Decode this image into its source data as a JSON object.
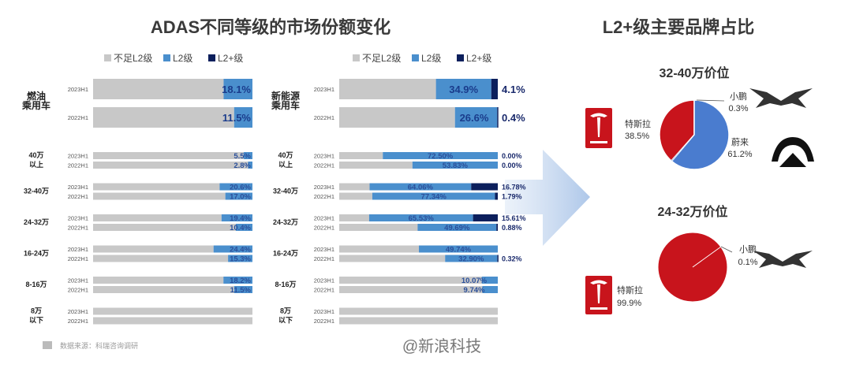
{
  "left_title": "ADAS不同等级的市场份额变化",
  "right_title": "L2+级主要品牌占比",
  "legend": [
    {
      "label": "不足L2级",
      "color": "#c8c8c8"
    },
    {
      "label": "L2级",
      "color": "#4a8fcd"
    },
    {
      "label": "L2+级",
      "color": "#0c1f5c"
    }
  ],
  "source_note": "数据来源：科瑞咨询调研",
  "watermark": "@新浪科技",
  "chart_data": [
    {
      "type": "bar",
      "stacked": true,
      "orientation": "horizontal",
      "title": "ADAS不同等级的市场份额变化 — 燃油乘用车",
      "series_names": [
        "不足L2级",
        "L2级",
        "L2+级"
      ],
      "groups": [
        {
          "label": "燃油\n乘用车",
          "rows": [
            {
              "year": "2023H1",
              "l2": 18.1,
              "l2p": 0,
              "label": "18.1%"
            },
            {
              "year": "2022H1",
              "l2": 11.5,
              "l2p": 0,
              "label": "11.5%"
            }
          ]
        },
        {
          "label": "40万\n以上",
          "rows": [
            {
              "year": "2023H1",
              "l2": 5.5,
              "l2p": 0,
              "label": "5.5%"
            },
            {
              "year": "2022H1",
              "l2": 2.8,
              "l2p": 0,
              "label": "2.8%"
            }
          ]
        },
        {
          "label": "32-40万",
          "rows": [
            {
              "year": "2023H1",
              "l2": 20.6,
              "l2p": 0,
              "label": "20.6%"
            },
            {
              "year": "2022H1",
              "l2": 17.0,
              "l2p": 0,
              "label": "17.0%"
            }
          ]
        },
        {
          "label": "24-32万",
          "rows": [
            {
              "year": "2023H1",
              "l2": 19.4,
              "l2p": 0,
              "label": "19.4%"
            },
            {
              "year": "2022H1",
              "l2": 10.4,
              "l2p": 0,
              "label": "10.4%"
            }
          ]
        },
        {
          "label": "16-24万",
          "rows": [
            {
              "year": "2023H1",
              "l2": 24.4,
              "l2p": 0,
              "label": "24.4%"
            },
            {
              "year": "2022H1",
              "l2": 15.3,
              "l2p": 0,
              "label": "15.3%"
            }
          ]
        },
        {
          "label": "8-16万",
          "rows": [
            {
              "year": "2023H1",
              "l2": 18.2,
              "l2p": 0,
              "label": "18.2%"
            },
            {
              "year": "2022H1",
              "l2": 11.5,
              "l2p": 0,
              "label": "11.5%"
            }
          ]
        },
        {
          "label": "8万\n以下",
          "rows": [
            {
              "year": "2023H1",
              "l2": 0,
              "l2p": 0,
              "label": ""
            },
            {
              "year": "2022H1",
              "l2": 0,
              "l2p": 0,
              "label": ""
            }
          ]
        }
      ]
    },
    {
      "type": "bar",
      "stacked": true,
      "orientation": "horizontal",
      "title": "ADAS不同等级的市场份额变化 — 新能源乘用车",
      "series_names": [
        "不足L2级",
        "L2级",
        "L2+级"
      ],
      "groups": [
        {
          "label": "新能源\n乘用车",
          "rows": [
            {
              "year": "2023H1",
              "l2": 34.9,
              "l2p": 4.1,
              "label": "34.9%",
              "label2": "4.1%"
            },
            {
              "year": "2022H1",
              "l2": 26.6,
              "l2p": 0.4,
              "label": "26.6%",
              "label2": "0.4%"
            }
          ]
        },
        {
          "label": "40万\n以上",
          "rows": [
            {
              "year": "2023H1",
              "l2": 72.5,
              "l2p": 0,
              "label": "72.50%",
              "label2": "0.00%"
            },
            {
              "year": "2022H1",
              "l2": 53.83,
              "l2p": 0,
              "label": "53.83%",
              "label2": "0.00%"
            }
          ]
        },
        {
          "label": "32-40万",
          "rows": [
            {
              "year": "2023H1",
              "l2": 64.06,
              "l2p": 16.78,
              "label": "64.06%",
              "label2": "16.78%"
            },
            {
              "year": "2022H1",
              "l2": 77.34,
              "l2p": 1.79,
              "label": "77.34%",
              "label2": "1.79%"
            }
          ]
        },
        {
          "label": "24-32万",
          "rows": [
            {
              "year": "2023H1",
              "l2": 65.53,
              "l2p": 15.61,
              "label": "65.53%",
              "label2": "15.61%"
            },
            {
              "year": "2022H1",
              "l2": 49.69,
              "l2p": 0.88,
              "label": "49.69%",
              "label2": "0.88%"
            }
          ]
        },
        {
          "label": "16-24万",
          "rows": [
            {
              "year": "2023H1",
              "l2": 49.74,
              "l2p": 0,
              "label": "49.74%",
              "label2": ""
            },
            {
              "year": "2022H1",
              "l2": 32.9,
              "l2p": 0.32,
              "label": "32.90%",
              "label2": "0.32%"
            }
          ]
        },
        {
          "label": "8-16万",
          "rows": [
            {
              "year": "2023H1",
              "l2": 10.07,
              "l2p": 0,
              "label": "10.07%",
              "label2": ""
            },
            {
              "year": "2022H1",
              "l2": 9.74,
              "l2p": 0,
              "label": "9.74%",
              "label2": ""
            }
          ]
        },
        {
          "label": "8万\n以下",
          "rows": [
            {
              "year": "2023H1",
              "l2": 0,
              "l2p": 0,
              "label": "",
              "label2": ""
            },
            {
              "year": "2022H1",
              "l2": 0,
              "l2p": 0,
              "label": "",
              "label2": ""
            }
          ]
        }
      ]
    },
    {
      "type": "pie",
      "title": "32-40万价位",
      "slices": [
        {
          "name": "特斯拉",
          "value": 38.5,
          "label": "38.5%",
          "color": "#c8141c"
        },
        {
          "name": "蔚来",
          "value": 61.2,
          "label": "61.2%",
          "color": "#4a7ccf"
        },
        {
          "name": "小鹏",
          "value": 0.3,
          "label": "0.3%",
          "color": "#4a7ccf"
        }
      ]
    },
    {
      "type": "pie",
      "title": "24-32万价位",
      "slices": [
        {
          "name": "特斯拉",
          "value": 99.9,
          "label": "99.9%",
          "color": "#c8141c"
        },
        {
          "name": "小鹏",
          "value": 0.1,
          "label": "0.1%",
          "color": "#e8e8e8"
        }
      ]
    }
  ]
}
